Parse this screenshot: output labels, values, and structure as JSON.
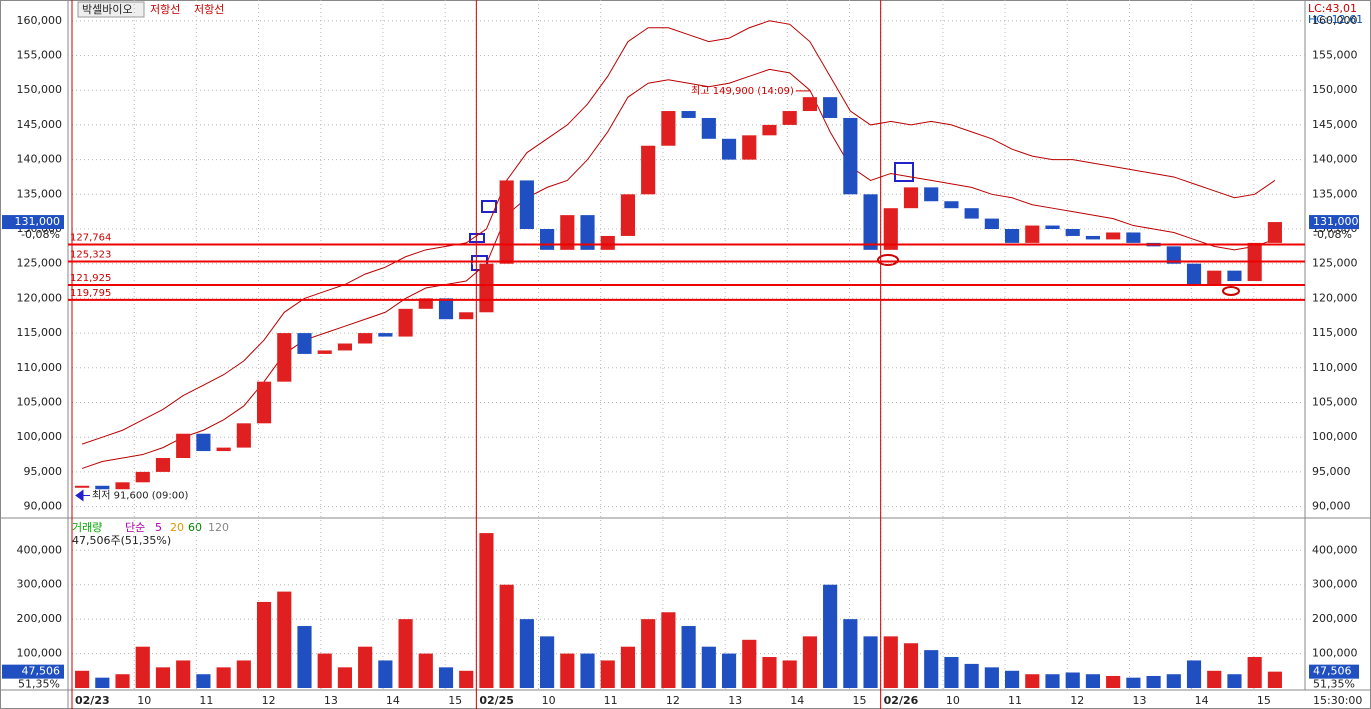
{
  "chart_data": [
    {
      "type": "candle-line",
      "title": "박셀바이오",
      "legend_labels": [
        "저항선",
        "저항선"
      ],
      "stats": [
        "LC:43,01",
        "HC:-12,61"
      ],
      "ylim": [
        88500,
        163000
      ],
      "yticks": [
        {
          "value": 90000,
          "label": "90,000"
        },
        {
          "value": 95000,
          "label": "95,000"
        },
        {
          "value": 100000,
          "label": "100,000"
        },
        {
          "value": 105000,
          "label": "105,000"
        },
        {
          "value": 110000,
          "label": "110,000"
        },
        {
          "value": 115000,
          "label": "115,000"
        },
        {
          "value": 120000,
          "label": "120,000"
        },
        {
          "value": 125000,
          "label": "125,000"
        },
        {
          "value": 130000,
          "label": "130,000"
        },
        {
          "value": 135000,
          "label": "135,000"
        },
        {
          "value": 140000,
          "label": "140,000"
        },
        {
          "value": 145000,
          "label": "145,000"
        },
        {
          "value": 150000,
          "label": "150,000"
        },
        {
          "value": 155000,
          "label": "155,000"
        },
        {
          "value": 160000,
          "label": "160,000"
        }
      ],
      "xlim": [
        0,
        60
      ],
      "xticks": [
        {
          "value": 0,
          "label": "02/23"
        },
        {
          "value": 3.08,
          "label": "10"
        },
        {
          "value": 6.15,
          "label": "11"
        },
        {
          "value": 9.23,
          "label": "12"
        },
        {
          "value": 12.31,
          "label": "13"
        },
        {
          "value": 15.38,
          "label": "14"
        },
        {
          "value": 18.46,
          "label": "15"
        },
        {
          "value": 20,
          "label": "02/25"
        },
        {
          "value": 23.08,
          "label": "10"
        },
        {
          "value": 26.15,
          "label": "11"
        },
        {
          "value": 29.23,
          "label": "12"
        },
        {
          "value": 32.31,
          "label": "13"
        },
        {
          "value": 35.38,
          "label": "14"
        },
        {
          "value": 38.46,
          "label": "15"
        },
        {
          "value": 40,
          "label": "02/26"
        },
        {
          "value": 43.08,
          "label": "10"
        },
        {
          "value": 46.15,
          "label": "11"
        },
        {
          "value": 49.23,
          "label": "12"
        },
        {
          "value": 52.31,
          "label": "13"
        },
        {
          "value": 55.38,
          "label": "14"
        },
        {
          "value": 58.46,
          "label": "15"
        }
      ],
      "day_starts": [
        0,
        20,
        40
      ],
      "values": [
        93000,
        92500,
        93500,
        95000,
        97000,
        100500,
        98000,
        98500,
        102000,
        108000,
        115000,
        112000,
        112500,
        113500,
        115000,
        114500,
        118500,
        120000,
        117000,
        118000,
        125000,
        137000,
        130000,
        127000,
        132000,
        127000,
        129000,
        135000,
        142000,
        147000,
        146000,
        143000,
        140000,
        143500,
        145000,
        147000,
        149000,
        146000,
        135000,
        127000,
        133000,
        136000,
        134000,
        133000,
        131500,
        130000,
        128000,
        130500,
        130000,
        129000,
        128500,
        129500,
        128000,
        127500,
        125000,
        122000,
        124000,
        122500,
        128000,
        131000
      ],
      "upper": [
        99000,
        100000,
        101000,
        102500,
        104000,
        106000,
        107500,
        109000,
        111000,
        114000,
        118000,
        120000,
        121000,
        122000,
        123500,
        124500,
        126000,
        127000,
        127500,
        128000,
        130000,
        137000,
        141000,
        143000,
        145000,
        148000,
        152000,
        157000,
        159000,
        159000,
        158000,
        157000,
        157500,
        159000,
        160000,
        159500,
        157000,
        152000,
        147000,
        145000,
        145500,
        145000,
        145500,
        145000,
        144000,
        143000,
        141500,
        140500,
        140000,
        140000,
        139500,
        139000,
        138500,
        138000,
        137500,
        136500,
        135500,
        134500,
        135000,
        137000
      ],
      "lower": [
        95500,
        96500,
        97000,
        97500,
        98500,
        100000,
        101000,
        102500,
        104500,
        108000,
        112000,
        114000,
        115000,
        116000,
        117000,
        118000,
        120000,
        121500,
        122000,
        122500,
        125000,
        132000,
        134500,
        136000,
        137000,
        140000,
        144000,
        149000,
        151000,
        151500,
        151000,
        150500,
        151000,
        152000,
        153000,
        152500,
        150000,
        144000,
        139000,
        137000,
        138000,
        137500,
        137000,
        136500,
        136000,
        135000,
        134500,
        133500,
        133000,
        132500,
        132000,
        131500,
        130500,
        130000,
        129500,
        128500,
        127500,
        127000,
        127500,
        128500
      ],
      "levels": [
        {
          "value": 127764,
          "label": "127,764"
        },
        {
          "value": 125323,
          "label": "125,323"
        },
        {
          "value": 121925,
          "label": "121,925"
        },
        {
          "value": 119795,
          "label": "119,795"
        }
      ],
      "current": {
        "value": 131000,
        "label": "131,000"
      },
      "change": "-0,08%",
      "high": {
        "x": 36,
        "value": 149900,
        "text": "최고 149,900 (14:09)"
      },
      "low": {
        "x": 0,
        "value": 91600,
        "text": "최저 91,600 (09:00)"
      },
      "time": "15:30:00"
    },
    {
      "type": "volume-bar",
      "legend_labels": [
        "거래량",
        "단순",
        "5",
        "20",
        "60",
        "120"
      ],
      "info": "47,506주(51,35%)",
      "ylim": [
        0,
        488000
      ],
      "yticks": [
        {
          "value": 100000,
          "label": "100,000"
        },
        {
          "value": 200000,
          "label": "200,000"
        },
        {
          "value": 300000,
          "label": "300,000"
        },
        {
          "value": 400000,
          "label": "400,000"
        }
      ],
      "current": {
        "value": 47506,
        "label": "47,506"
      },
      "ratio": "51,35%",
      "values": [
        50000,
        30000,
        40000,
        120000,
        60000,
        80000,
        40000,
        60000,
        80000,
        250000,
        280000,
        180000,
        100000,
        60000,
        120000,
        80000,
        200000,
        100000,
        60000,
        50000,
        450000,
        300000,
        200000,
        150000,
        100000,
        100000,
        80000,
        120000,
        200000,
        220000,
        180000,
        120000,
        100000,
        140000,
        90000,
        80000,
        150000,
        300000,
        200000,
        150000,
        150000,
        130000,
        110000,
        90000,
        70000,
        60000,
        50000,
        40000,
        40000,
        45000,
        40000,
        35000,
        30000,
        35000,
        40000,
        80000,
        50000,
        40000,
        90000,
        47506
      ]
    }
  ]
}
